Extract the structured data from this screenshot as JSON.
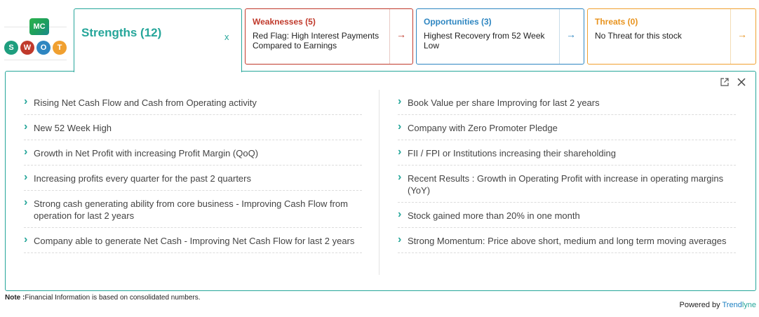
{
  "logo": {
    "badge": "MC",
    "letters": [
      {
        "letter": "S",
        "color": "#1e9e7e"
      },
      {
        "letter": "W",
        "color": "#c0392b"
      },
      {
        "letter": "O",
        "color": "#2e86c1"
      },
      {
        "letter": "T",
        "color": "#f0a030"
      }
    ]
  },
  "tabs": {
    "strengths": {
      "title": "Strengths (12)",
      "close": "x"
    },
    "weaknesses": {
      "title": "Weaknesses (5)",
      "desc": "Red Flag: High Interest Payments Compared to Earnings",
      "arrow": "→"
    },
    "opportunities": {
      "title": "Opportunities (3)",
      "desc": "Highest Recovery from 52 Week Low",
      "arrow": "→"
    },
    "threats": {
      "title": "Threats (0)",
      "desc": "No Threat for this stock",
      "arrow": "→"
    }
  },
  "panel": {
    "icons": [
      "external-link-icon",
      "close-icon"
    ],
    "left_items": [
      "Rising Net Cash Flow and Cash from Operating activity",
      "New 52 Week High",
      "Growth in Net Profit with increasing Profit Margin (QoQ)",
      "Increasing profits every quarter for the past 2 quarters",
      "Strong cash generating ability from core business - Improving Cash Flow from operation for last 2 years",
      "Company able to generate Net Cash - Improving Net Cash Flow for last 2 years"
    ],
    "right_items": [
      "Book Value per share Improving for last 2 years",
      "Company with Zero Promoter Pledge",
      "FII / FPI or Institutions increasing their shareholding",
      "Recent Results : Growth in Operating Profit with increase in operating margins (YoY)",
      "Stock gained more than 20% in one month",
      "Strong Momentum: Price above short, medium and long term moving averages"
    ]
  },
  "footer": {
    "note_label": "Note :",
    "note_text": "Financial Information is based on consolidated numbers.",
    "powered_by": "Powered by ",
    "brand_a": "Trend",
    "brand_b": "lyne"
  }
}
